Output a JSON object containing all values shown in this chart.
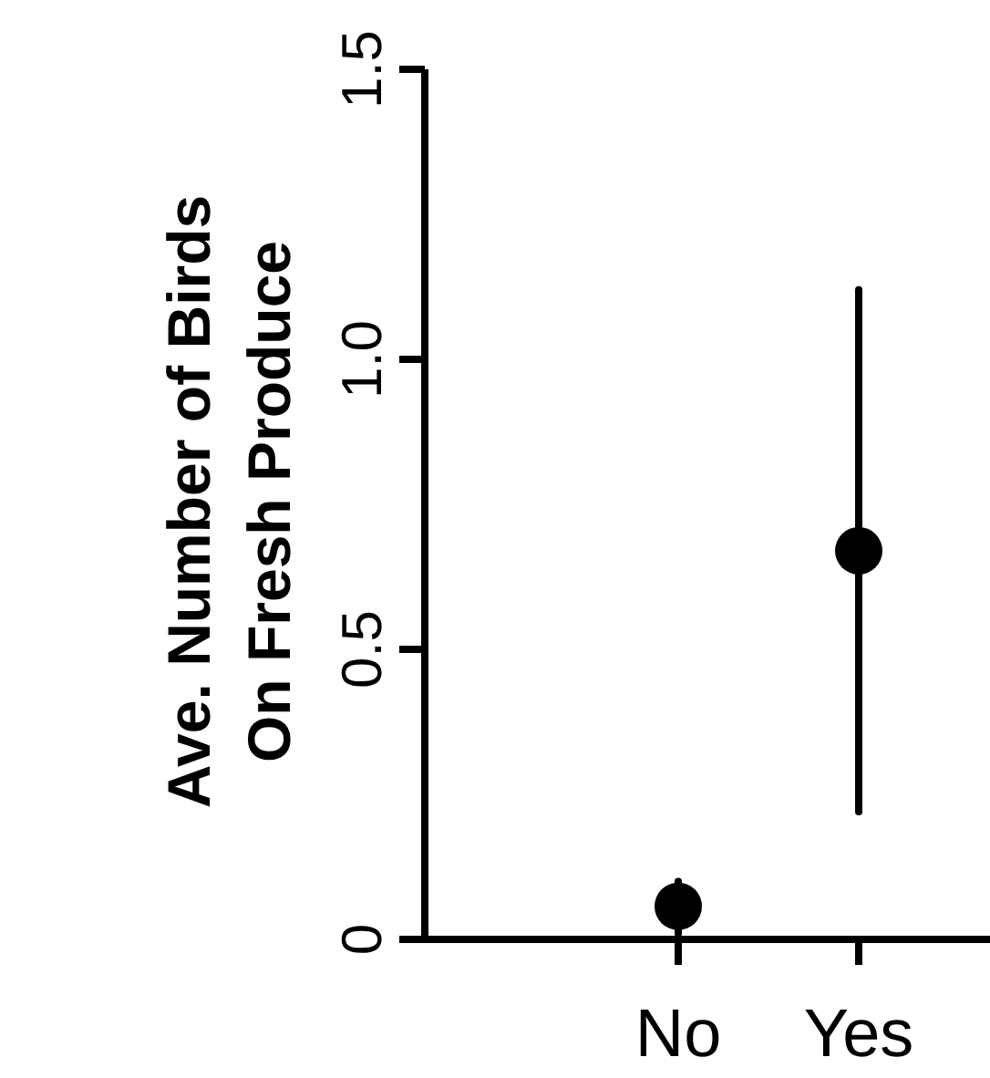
{
  "chart_data": {
    "type": "scatter",
    "ylabel": "Ave. Number of Birds\nOn Fresh Produce",
    "categories": [
      "No",
      "Yes"
    ],
    "series": [
      {
        "color": "#000000",
        "values": [
          0.057,
          0.67
        ],
        "errors": [
          [
            0.01,
            0.1
          ],
          [
            0.22,
            1.12
          ]
        ]
      }
    ],
    "ylim": [
      0,
      1.5
    ],
    "yticks": [
      0,
      {
        "value": 0.5,
        "label": "0.5"
      },
      {
        "value": 1,
        "label": "1.0"
      },
      {
        "value": 1.5,
        "label": "1.5"
      }
    ],
    "marker": "circle",
    "grid": false
  }
}
